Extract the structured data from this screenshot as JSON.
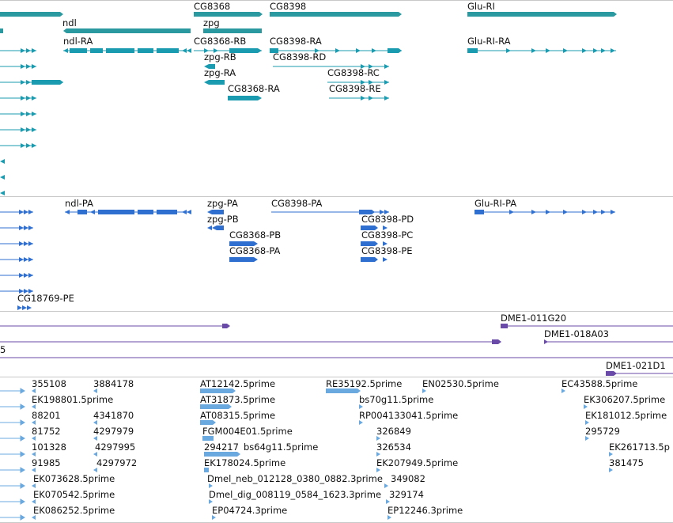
{
  "colors": {
    "teal": "#1a9bb0",
    "gene_bar": "#2a9aa0",
    "blue": "#2f6fd0",
    "purple": "#6a4aa8",
    "light": "#6aa8e0"
  },
  "genes": {
    "ndl": "ndl",
    "cg8368": "CG8368",
    "zpg": "zpg",
    "cg8398": "CG8398",
    "glu_ri": "Glu-RI"
  },
  "transcripts_ra": {
    "ndl_ra": "ndl-RA",
    "cg8368_rb": "CG8368-RB",
    "zpg_rb": "zpg-RB",
    "zpg_ra": "zpg-RA",
    "cg8368_ra": "CG8368-RA",
    "cg8398_ra": "CG8398-RA",
    "cg8398_rd": "CG8398-RD",
    "cg8398_rc": "CG8398-RC",
    "cg8398_re": "CG8398-RE",
    "glu_ri_ra": "Glu-RI-RA"
  },
  "proteins": {
    "ndl_pa": "ndl-PA",
    "zpg_pa": "zpg-PA",
    "zpg_pb": "zpg-PB",
    "cg8368_pb": "CG8368-PB",
    "cg8368_pa": "CG8368-PA",
    "cg8398_pa": "CG8398-PA",
    "cg8398_pd": "CG8398-PD",
    "cg8398_pc": "CG8398-PC",
    "cg8398_pe": "CG8398-PE",
    "glu_ri_pa": "Glu-RI-PA",
    "cg18769_pe": "CG18769-PE"
  },
  "clones": {
    "dme1_011g20": "DME1-011G20",
    "dme1_018a03": "DME1-018A03",
    "dme1_021d1": "DME1-021D1",
    "edge_label": "5"
  },
  "ests": [
    "355108",
    "3884178",
    "EK198801.5prime",
    "88201",
    "4341870",
    "81752",
    "4297979",
    "101328",
    "4297995",
    "91985",
    "4297972",
    "EK073628.5prime",
    "EK070542.5prime",
    "EK086252.5prime",
    "AT12142.5prime",
    "AT31873.5prime",
    "AT08315.5prime",
    "FGM004E01.5prime",
    "294217",
    "bs64g11.5prime",
    "EK178024.5prime",
    "Dmel_neb_012128_0380_0882.3prime",
    "Dmel_dig_008119_0584_1623.3prime",
    "EP04724.3prime",
    "RE35192.5prime",
    "EN02530.5prime",
    "bs70g11.5prime",
    "RP004133041.5prime",
    "326849",
    "326534",
    "EK207949.5prime",
    "349082",
    "329174",
    "EP12246.3prime",
    "EC43588.5prime",
    "EK306207.5prime",
    "EK181012.5prime",
    "295729",
    "EK261713.5p",
    "381475"
  ]
}
